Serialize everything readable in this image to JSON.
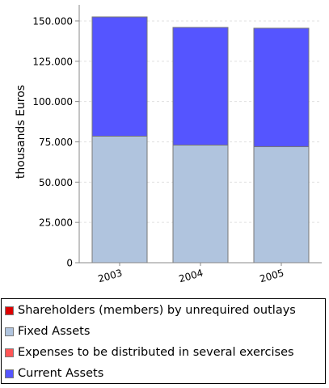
{
  "chart_data": {
    "type": "bar",
    "stacked": true,
    "categories": [
      "2003",
      "2004",
      "2005"
    ],
    "ylabel": "thousands Euros",
    "xlabel": "",
    "ylim": [
      0,
      160000
    ],
    "yticks": [
      "0",
      "25.000",
      "50.000",
      "75.000",
      "100.000",
      "125.000",
      "150.000"
    ],
    "ytick_values": [
      0,
      25000,
      50000,
      75000,
      100000,
      125000,
      150000
    ],
    "grid": true,
    "legend_position": "bottom",
    "series": [
      {
        "name": "Shareholders (members) by unrequired outlays",
        "color": "#dd0000",
        "values": [
          0,
          0,
          0
        ]
      },
      {
        "name": "Fixed Assets",
        "color": "#b0c4de",
        "values": [
          78500,
          73000,
          72000
        ]
      },
      {
        "name": "Expenses to be distributed in several exercises",
        "color": "#ff5555",
        "values": [
          0,
          0,
          0
        ]
      },
      {
        "name": "Current Assets",
        "color": "#5555ff",
        "values": [
          74000,
          73000,
          73500
        ]
      }
    ]
  }
}
